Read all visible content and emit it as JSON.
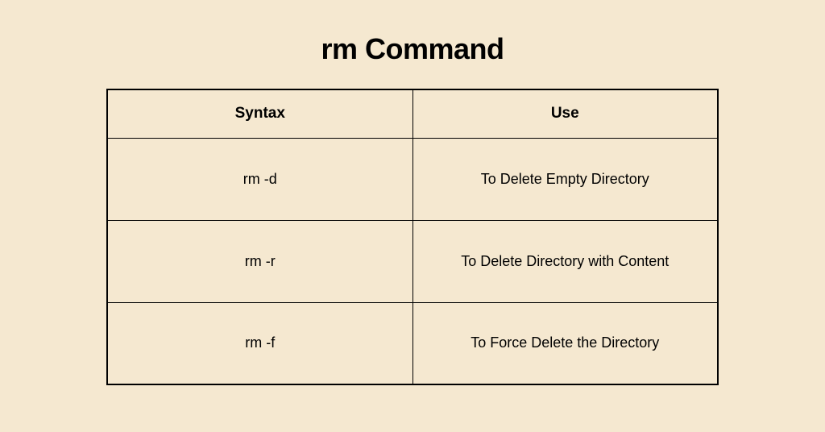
{
  "title": "rm Command",
  "table": {
    "type": "table",
    "background_color": "#f5e8d0",
    "border_color": "#000000",
    "text_color": "#000000",
    "title_fontsize": 36,
    "header_fontsize": 19,
    "cell_fontsize": 18,
    "columns": [
      {
        "key": "syntax",
        "label": "Syntax",
        "width": "50%"
      },
      {
        "key": "use",
        "label": "Use",
        "width": "50%"
      }
    ],
    "rows": [
      {
        "syntax": "rm -d",
        "use": "To Delete Empty Directory"
      },
      {
        "syntax": "rm -r",
        "use": "To Delete Directory with Content"
      },
      {
        "syntax": "rm -f",
        "use": "To Force Delete the Directory"
      }
    ]
  }
}
